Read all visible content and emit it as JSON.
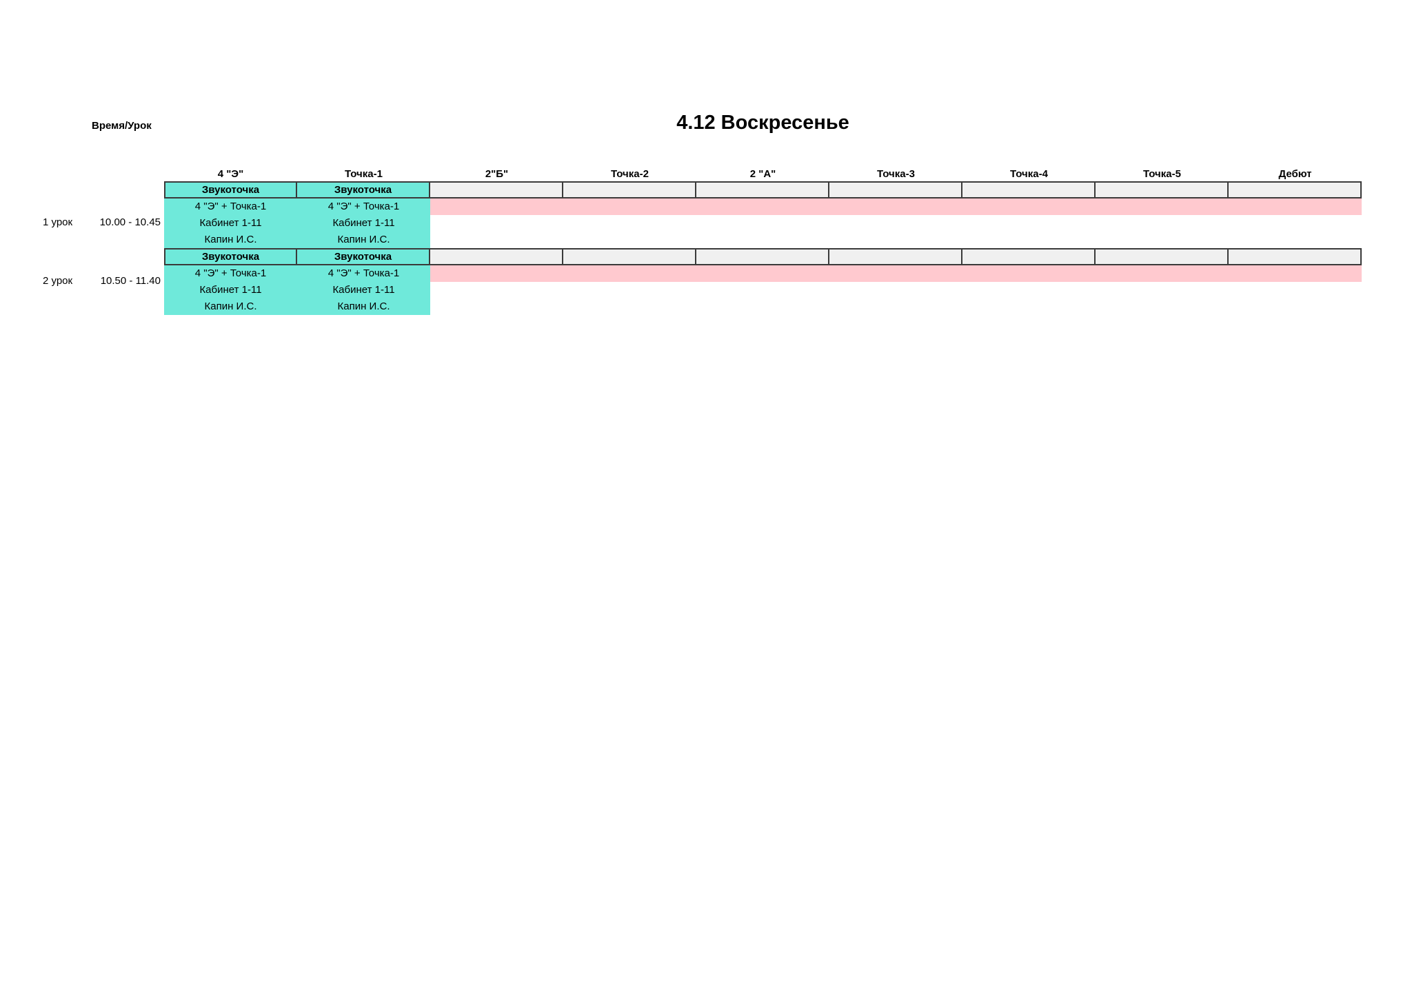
{
  "page": {
    "corner_label": "Время/Урок",
    "title": "4.12 Воскресенье"
  },
  "columns": [
    "4 \"Э\"",
    "Точка-1",
    "2\"Б\"",
    "Точка-2",
    "2 \"А\"",
    "Точка-3",
    "Точка-4",
    "Точка-5",
    "Дебют"
  ],
  "lessons": [
    {
      "label": "1 урок",
      "time": "10.00 - 10.45",
      "entries": [
        {
          "column": "4 \"Э\"",
          "activity": "Звукоточка",
          "group": "4 \"Э\" + Точка-1",
          "room": "Кабинет 1-11",
          "teacher": "Капин И.С."
        },
        {
          "column": "Точка-1",
          "activity": "Звукоточка",
          "group": "4 \"Э\" + Точка-1",
          "room": "Кабинет 1-11",
          "teacher": "Капин И.С."
        }
      ]
    },
    {
      "label": "2 урок",
      "time": "10.50 - 11.40",
      "entries": [
        {
          "column": "4 \"Э\"",
          "activity": "Звукоточка",
          "group": "4 \"Э\" + Точка-1",
          "room": "Кабинет 1-11",
          "teacher": "Капин И.С."
        },
        {
          "column": "Точка-1",
          "activity": "Звукоточка",
          "group": "4 \"Э\" + Точка-1",
          "room": "Кабинет 1-11",
          "teacher": "Капин И.С."
        }
      ]
    }
  ],
  "colors": {
    "teal": "#6FE9DA",
    "pink": "#FFC9CF",
    "gray": "#F0F0F0",
    "border": "#3A3A3A"
  }
}
